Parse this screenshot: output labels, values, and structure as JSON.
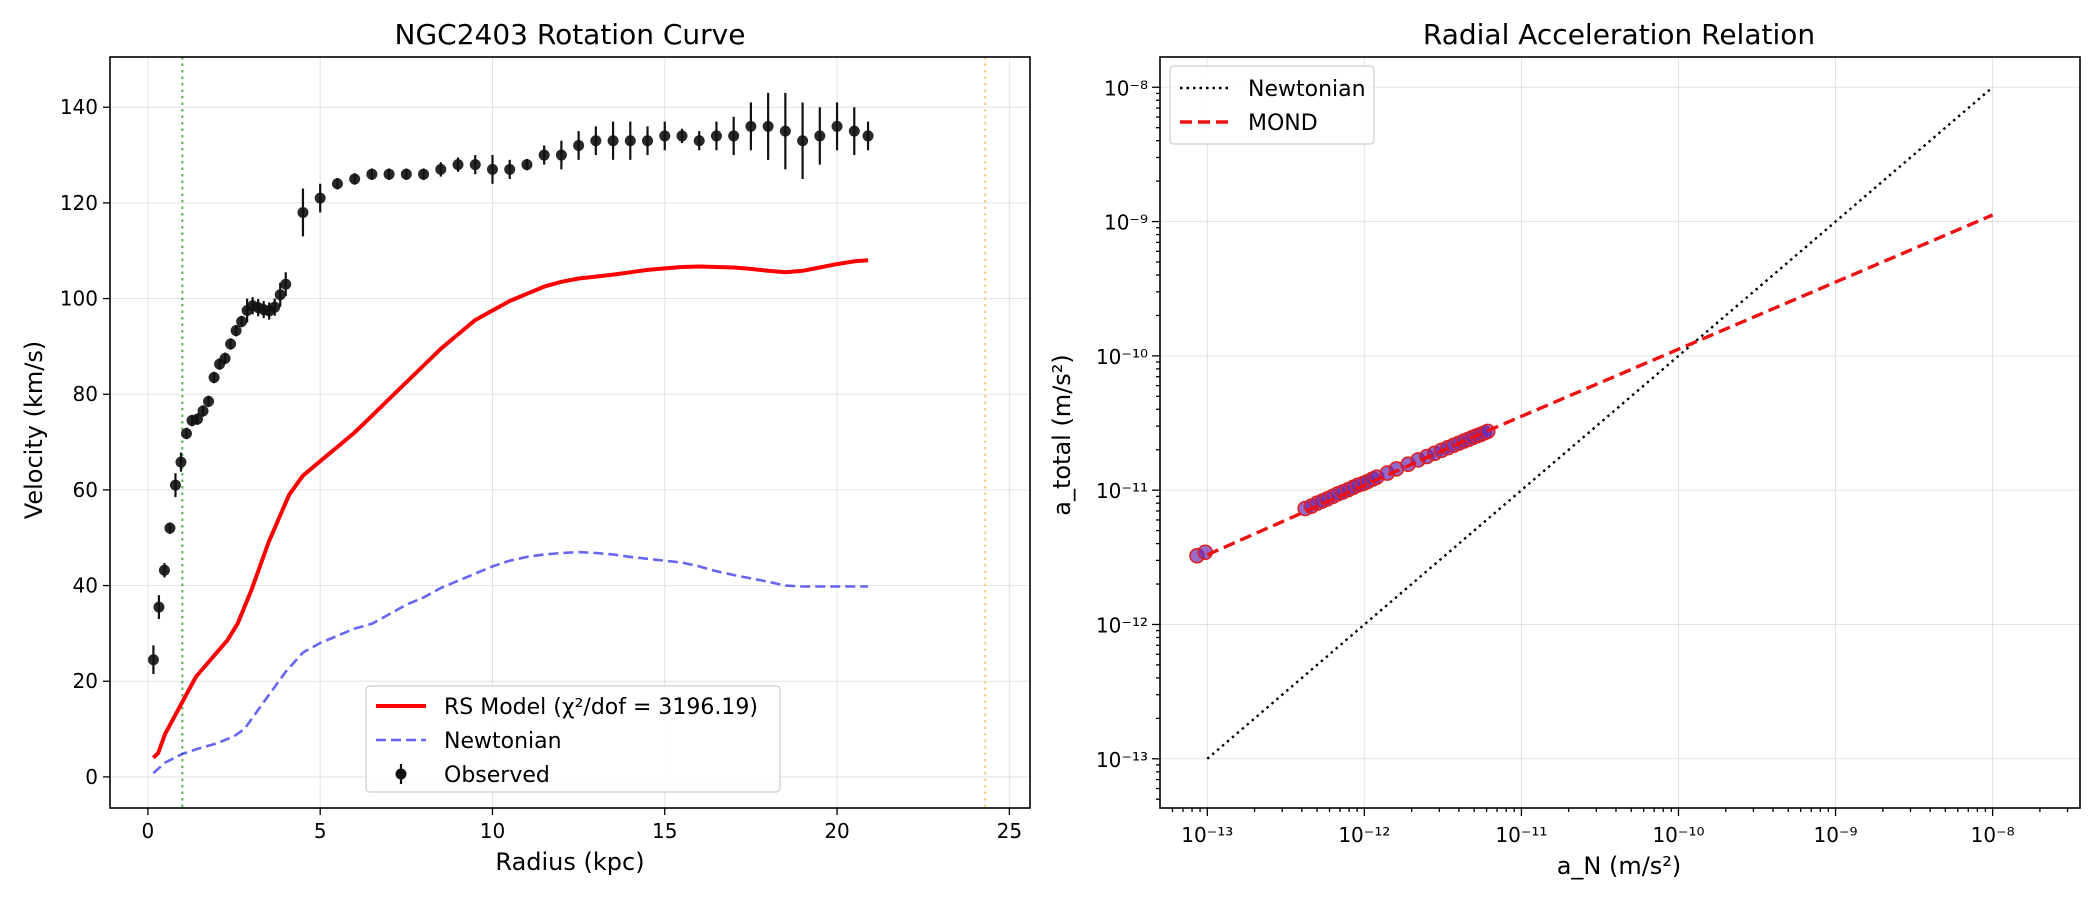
{
  "chart_data": [
    {
      "type": "line",
      "title": "NGC2403 Rotation Curve",
      "xlabel": "Radius (kpc)",
      "ylabel": "Velocity (km/s)",
      "xlim": [
        -1.1,
        25.6
      ],
      "ylim": [
        -6.5,
        150.5
      ],
      "xticks": [
        0,
        5,
        10,
        15,
        20,
        25
      ],
      "yticks": [
        0,
        20,
        40,
        60,
        80,
        100,
        120,
        140
      ],
      "grid": true,
      "legend_position": "lower-center",
      "vlines": [
        {
          "x": 1.0,
          "color": "#2ca02c",
          "style": "dotted"
        },
        {
          "x": 24.3,
          "color": "#f0c060",
          "style": "dotted"
        }
      ],
      "series": [
        {
          "name": "RS Model (χ²/dof = 3196.19)",
          "kind": "line",
          "color": "#ff0000",
          "style": "solid",
          "x": [
            0.16,
            0.3,
            0.5,
            0.8,
            1.1,
            1.4,
            1.7,
            2.0,
            2.3,
            2.6,
            2.8,
            3.0,
            3.2,
            3.5,
            3.8,
            4.1,
            4.5,
            5.0,
            5.5,
            6.0,
            6.5,
            7.0,
            7.5,
            8.0,
            8.5,
            9.0,
            9.5,
            10.0,
            10.5,
            11.0,
            11.5,
            12.0,
            12.5,
            13.0,
            13.5,
            14.0,
            14.5,
            15.0,
            15.5,
            16.0,
            16.5,
            17.0,
            17.5,
            18.0,
            18.5,
            19.0,
            19.5,
            20.0,
            20.5,
            20.9
          ],
          "y": [
            4,
            5,
            9,
            13,
            17,
            21,
            23.5,
            26,
            28.5,
            32,
            35.5,
            39,
            43,
            49,
            54,
            59,
            63,
            66,
            69,
            72,
            75.5,
            79,
            82.5,
            86,
            89.5,
            92.5,
            95.5,
            97.5,
            99.5,
            101,
            102.5,
            103.5,
            104.2,
            104.6,
            105,
            105.5,
            106,
            106.3,
            106.6,
            106.7,
            106.6,
            106.5,
            106.2,
            105.8,
            105.5,
            105.8,
            106.5,
            107.2,
            107.8,
            108
          ]
        },
        {
          "name": "Newtonian",
          "kind": "line",
          "color": "#3333ee",
          "style": "dashed",
          "x": [
            0.16,
            0.5,
            1.0,
            1.5,
            2.0,
            2.5,
            2.8,
            3.2,
            3.6,
            4.0,
            4.5,
            5.0,
            5.5,
            6.0,
            6.5,
            7.0,
            7.5,
            8.0,
            8.5,
            9.0,
            9.5,
            10.0,
            10.5,
            11.0,
            11.5,
            12.0,
            12.5,
            13.0,
            13.5,
            14.0,
            14.5,
            15.0,
            15.5,
            16.0,
            16.5,
            17.0,
            17.5,
            18.0,
            18.5,
            19.0,
            19.5,
            20.0,
            20.5,
            20.9
          ],
          "y": [
            0.8,
            3,
            4.8,
            6,
            7,
            8.5,
            10,
            14,
            18,
            22,
            26,
            28,
            29.5,
            31,
            32,
            34,
            36,
            37.5,
            39.5,
            41,
            42.5,
            44,
            45.2,
            46,
            46.5,
            46.8,
            47,
            46.8,
            46.5,
            46,
            45.6,
            45.2,
            44.8,
            44,
            43,
            42.2,
            41.5,
            40.8,
            40,
            39.8,
            39.8,
            39.8,
            39.8,
            39.8
          ]
        },
        {
          "name": "Observed",
          "kind": "errorbar",
          "color": "#000000",
          "x": [
            0.16,
            0.32,
            0.48,
            0.64,
            0.8,
            0.96,
            1.12,
            1.28,
            1.44,
            1.6,
            1.76,
            1.92,
            2.08,
            2.24,
            2.4,
            2.56,
            2.72,
            2.88,
            3.04,
            3.2,
            3.36,
            3.52,
            3.68,
            3.84,
            4.0,
            4.5,
            5.0,
            5.5,
            6.0,
            6.5,
            7.0,
            7.5,
            8.0,
            8.5,
            9.0,
            9.5,
            10.0,
            10.5,
            11.0,
            11.5,
            12.0,
            12.5,
            13.0,
            13.5,
            14.0,
            14.5,
            15.0,
            15.5,
            16.0,
            16.5,
            17.0,
            17.5,
            18.0,
            18.5,
            19.0,
            19.5,
            20.0,
            20.5,
            20.9
          ],
          "y": [
            24.5,
            35.5,
            43.2,
            52,
            61,
            65.8,
            71.8,
            74.5,
            74.8,
            76.5,
            78.5,
            83.5,
            86.3,
            87.5,
            90.5,
            93.3,
            95.2,
            97.5,
            98.5,
            98.1,
            97.7,
            97.4,
            98.2,
            100.8,
            103,
            118,
            121,
            124,
            125,
            126,
            126,
            126,
            126,
            127,
            128,
            128,
            127,
            127,
            128,
            130,
            130,
            132,
            133,
            133,
            133,
            133,
            134,
            134,
            133,
            134,
            134,
            136,
            136,
            135,
            133,
            134,
            136,
            135,
            134
          ],
          "err": [
            3,
            2.5,
            1.5,
            1.2,
            2.5,
            2,
            1.2,
            1.2,
            1.2,
            1.2,
            1.2,
            1.2,
            1.2,
            1.2,
            1.2,
            1.2,
            1.2,
            2.5,
            1.8,
            1.8,
            1.8,
            1.8,
            1.8,
            2.5,
            2.5,
            5,
            3,
            1.2,
            1.2,
            1.2,
            1.2,
            1.2,
            1.2,
            1.5,
            1.5,
            2,
            3,
            2,
            1.2,
            2,
            3,
            3,
            3,
            4,
            4,
            3,
            3,
            1.5,
            2,
            3,
            4,
            5,
            7,
            8,
            8,
            6,
            5,
            5,
            3
          ]
        }
      ]
    },
    {
      "type": "scatter",
      "title": "Radial Acceleration Relation",
      "xlabel": "a_N (m/s²)",
      "ylabel": "a_total (m/s²)",
      "xscale": "log",
      "yscale": "log",
      "xlim": [
        5e-14,
        3.6e-08
      ],
      "ylim": [
        4.3e-14,
        1.68e-08
      ],
      "xticks": [
        "10⁻¹³",
        "10⁻¹²",
        "10⁻¹¹",
        "10⁻¹⁰",
        "10⁻⁹",
        "10⁻⁸"
      ],
      "yticks": [
        "10⁻¹³",
        "10⁻¹²",
        "10⁻¹¹",
        "10⁻¹⁰",
        "10⁻⁹",
        "10⁻⁸"
      ],
      "grid": true,
      "legend_position": "top-left",
      "series": [
        {
          "name": "Newtonian",
          "kind": "line",
          "color": "#000000",
          "style": "dotted",
          "x": [
            1e-13,
            1e-08
          ],
          "y": [
            1e-13,
            1e-08
          ]
        },
        {
          "name": "MOND",
          "kind": "line",
          "color": "#ee1111",
          "style": "dashed",
          "x": [
            1e-13,
            6e-12,
            1e-08
          ],
          "y": [
            3.3e-12,
            2.75e-11,
            1.12e-09
          ]
        },
        {
          "name": "",
          "kind": "points",
          "color": "#6a2bb5",
          "edge": "#e02020",
          "x": [
            8.6e-14,
            9.7e-14,
            4.2e-13,
            4.6e-13,
            5e-13,
            5.4e-13,
            5.8e-13,
            6.3e-13,
            6.8e-13,
            7.3e-13,
            7.9e-13,
            8.5e-13,
            9.1e-13,
            9.8e-13,
            1.05e-12,
            1.13e-12,
            1.2e-12,
            1.4e-12,
            1.6e-12,
            1.9e-12,
            2.2e-12,
            2.5e-12,
            2.8e-12,
            3.1e-12,
            3.4e-12,
            3.7e-12,
            4e-12,
            4.3e-12,
            4.6e-12,
            4.9e-12,
            5.2e-12,
            5.5e-12,
            5.8e-12,
            6.1e-12
          ],
          "y": [
            3.25e-12,
            3.45e-12,
            7.3e-12,
            7.6e-12,
            8e-12,
            8.3e-12,
            8.6e-12,
            9e-12,
            9.4e-12,
            9.7e-12,
            1.01e-11,
            1.05e-11,
            1.09e-11,
            1.12e-11,
            1.16e-11,
            1.21e-11,
            1.25e-11,
            1.34e-11,
            1.44e-11,
            1.56e-11,
            1.68e-11,
            1.78e-11,
            1.88e-11,
            1.98e-11,
            2.07e-11,
            2.16e-11,
            2.24e-11,
            2.32e-11,
            2.39e-11,
            2.47e-11,
            2.54e-11,
            2.6e-11,
            2.67e-11,
            2.74e-11
          ]
        }
      ]
    }
  ]
}
